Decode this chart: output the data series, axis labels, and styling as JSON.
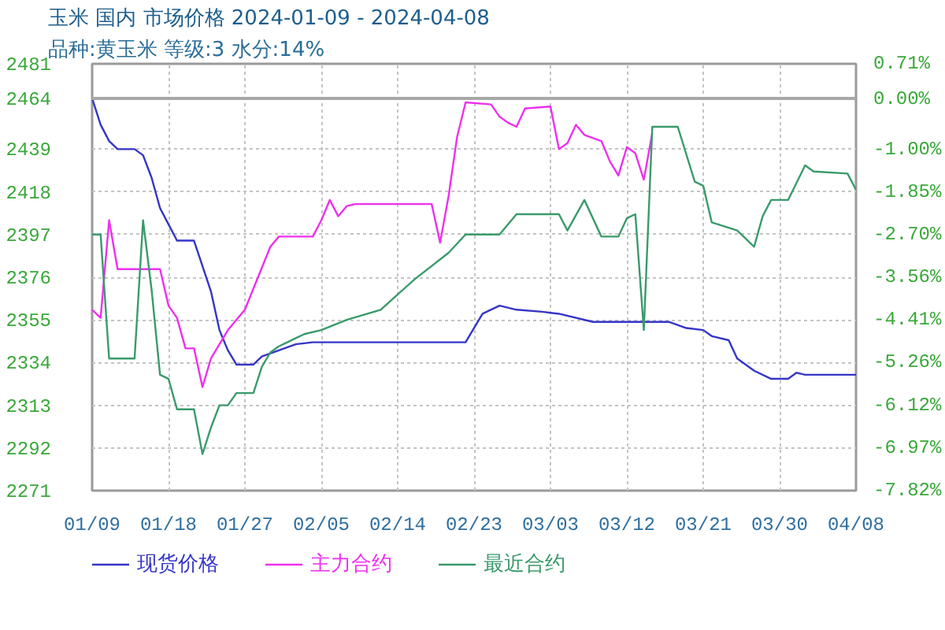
{
  "chart_data": {
    "type": "line",
    "title": "玉米 国内 市场价格 2024-01-09 - 2024-04-08",
    "subtitle": "品种:黄玉米 等级:3 水分:14%",
    "xlim": [
      "2024-01-09",
      "2024-04-08"
    ],
    "xticks": [
      {
        "value": "2024-01-09",
        "label": "01/09"
      },
      {
        "value": "2024-01-18",
        "label": "01/18"
      },
      {
        "value": "2024-01-27",
        "label": "01/27"
      },
      {
        "value": "2024-02-05",
        "label": "02/05"
      },
      {
        "value": "2024-02-14",
        "label": "02/14"
      },
      {
        "value": "2024-02-23",
        "label": "02/23"
      },
      {
        "value": "2024-03-03",
        "label": "03/03"
      },
      {
        "value": "2024-03-12",
        "label": "03/12"
      },
      {
        "value": "2024-03-21",
        "label": "03/21"
      },
      {
        "value": "2024-03-30",
        "label": "03/30"
      },
      {
        "value": "2024-04-08",
        "label": "04/08"
      }
    ],
    "ylim": [
      2271,
      2481
    ],
    "yticks": [
      2271,
      2292,
      2313,
      2334,
      2355,
      2376,
      2397,
      2418,
      2439,
      2464,
      2481
    ],
    "y2lim": [
      -7.82,
      0.71
    ],
    "y2ticks": [
      {
        "value": -7.82,
        "label": "-7.82%"
      },
      {
        "value": -6.97,
        "label": "-6.97%"
      },
      {
        "value": -6.12,
        "label": "-6.12%"
      },
      {
        "value": -5.26,
        "label": "-5.26%"
      },
      {
        "value": -4.41,
        "label": "-4.41%"
      },
      {
        "value": -3.56,
        "label": "-3.56%"
      },
      {
        "value": -2.7,
        "label": "-2.70%"
      },
      {
        "value": -1.85,
        "label": "-1.85%"
      },
      {
        "value": -1.0,
        "label": "-1.00%"
      },
      {
        "value": 0.0,
        "label": "0.00%"
      },
      {
        "value": 0.71,
        "label": "0.71%"
      }
    ],
    "grid": true,
    "legend": "bottom",
    "ref_lines": [
      {
        "axis": "y",
        "value": 2464,
        "color": "#a8a8a8",
        "line_style": "solid"
      }
    ],
    "series": [
      {
        "name": "现货价格",
        "color": "#3535c8",
        "x": [
          "2024-01-09",
          "2024-01-10",
          "2024-01-11",
          "2024-01-12",
          "2024-01-14",
          "2024-01-15",
          "2024-01-16",
          "2024-01-17",
          "2024-01-18",
          "2024-01-19",
          "2024-01-21",
          "2024-01-23",
          "2024-01-24",
          "2024-01-25",
          "2024-01-26",
          "2024-01-28",
          "2024-01-29",
          "2024-01-31",
          "2024-02-02",
          "2024-02-04",
          "2024-02-22",
          "2024-02-24",
          "2024-02-26",
          "2024-02-28",
          "2024-03-02",
          "2024-03-04",
          "2024-03-08",
          "2024-03-17",
          "2024-03-19",
          "2024-03-21",
          "2024-03-22",
          "2024-03-24",
          "2024-03-25",
          "2024-03-27",
          "2024-03-29",
          "2024-03-31",
          "2024-04-01",
          "2024-04-02",
          "2024-04-08"
        ],
        "values": [
          2464,
          2451,
          2443,
          2439,
          2439,
          2436,
          2425,
          2410,
          2402,
          2394,
          2394,
          2369,
          2350,
          2340,
          2333,
          2333,
          2337,
          2340,
          2343,
          2344,
          2344,
          2358,
          2362,
          2360,
          2359,
          2358,
          2354,
          2354,
          2351,
          2350,
          2347,
          2345,
          2336,
          2330,
          2326,
          2326,
          2329,
          2328,
          2328
        ]
      },
      {
        "name": "主力合约",
        "color": "#ee30ee",
        "x": [
          "2024-01-09",
          "2024-01-10",
          "2024-01-11",
          "2024-01-12",
          "2024-01-15",
          "2024-01-17",
          "2024-01-18",
          "2024-01-19",
          "2024-01-20",
          "2024-01-21",
          "2024-01-22",
          "2024-01-23",
          "2024-01-25",
          "2024-01-27",
          "2024-01-30",
          "2024-01-31",
          "2024-02-04",
          "2024-02-05",
          "2024-02-06",
          "2024-02-07",
          "2024-02-08",
          "2024-02-09",
          "2024-02-18",
          "2024-02-19",
          "2024-02-20",
          "2024-02-21",
          "2024-02-22",
          "2024-02-25",
          "2024-02-26",
          "2024-02-27",
          "2024-02-28",
          "2024-02-29",
          "2024-03-03",
          "2024-03-04",
          "2024-03-05",
          "2024-03-06",
          "2024-03-07",
          "2024-03-09",
          "2024-03-10",
          "2024-03-11",
          "2024-03-12",
          "2024-03-13",
          "2024-03-14",
          "2024-03-15"
        ],
        "values": [
          2360,
          2356,
          2404,
          2380,
          2380,
          2380,
          2362,
          2356,
          2341,
          2341,
          2322,
          2336,
          2350,
          2360,
          2391,
          2396,
          2396,
          2404,
          2414,
          2406,
          2411,
          2412,
          2412,
          2393,
          2416,
          2445,
          2462,
          2461,
          2455,
          2452,
          2450,
          2459,
          2460,
          2439,
          2442,
          2451,
          2446,
          2443,
          2433,
          2426,
          2440,
          2437,
          2424,
          2447
        ]
      },
      {
        "name": "最近合约",
        "color": "#3a9a6c",
        "x": [
          "2024-01-09",
          "2024-01-10",
          "2024-01-11",
          "2024-01-14",
          "2024-01-15",
          "2024-01-16",
          "2024-01-17",
          "2024-01-18",
          "2024-01-19",
          "2024-01-21",
          "2024-01-22",
          "2024-01-23",
          "2024-01-24",
          "2024-01-25",
          "2024-01-26",
          "2024-01-28",
          "2024-01-29",
          "2024-01-30",
          "2024-01-31",
          "2024-02-01",
          "2024-02-02",
          "2024-02-03",
          "2024-02-05",
          "2024-02-08",
          "2024-02-12",
          "2024-02-16",
          "2024-02-20",
          "2024-02-22",
          "2024-02-26",
          "2024-02-28",
          "2024-03-04",
          "2024-03-05",
          "2024-03-07",
          "2024-03-09",
          "2024-03-11",
          "2024-03-12",
          "2024-03-13",
          "2024-03-14",
          "2024-03-15",
          "2024-03-18",
          "2024-03-20",
          "2024-03-21",
          "2024-03-22",
          "2024-03-25",
          "2024-03-27",
          "2024-03-28",
          "2024-03-29",
          "2024-03-31",
          "2024-04-02",
          "2024-04-03",
          "2024-04-07",
          "2024-04-08"
        ],
        "values": [
          2397,
          2397,
          2336,
          2336,
          2404,
          2370,
          2328,
          2326,
          2311,
          2311,
          2289,
          2302,
          2313,
          2313,
          2319,
          2319,
          2332,
          2339,
          2342,
          2344,
          2346,
          2348,
          2350,
          2355,
          2360,
          2375,
          2388,
          2397,
          2397,
          2407,
          2407,
          2399,
          2414,
          2396,
          2396,
          2405,
          2407,
          2350,
          2450,
          2450,
          2423,
          2421,
          2403,
          2399,
          2391,
          2406,
          2414,
          2414,
          2431,
          2428,
          2427,
          2419
        ]
      }
    ]
  }
}
